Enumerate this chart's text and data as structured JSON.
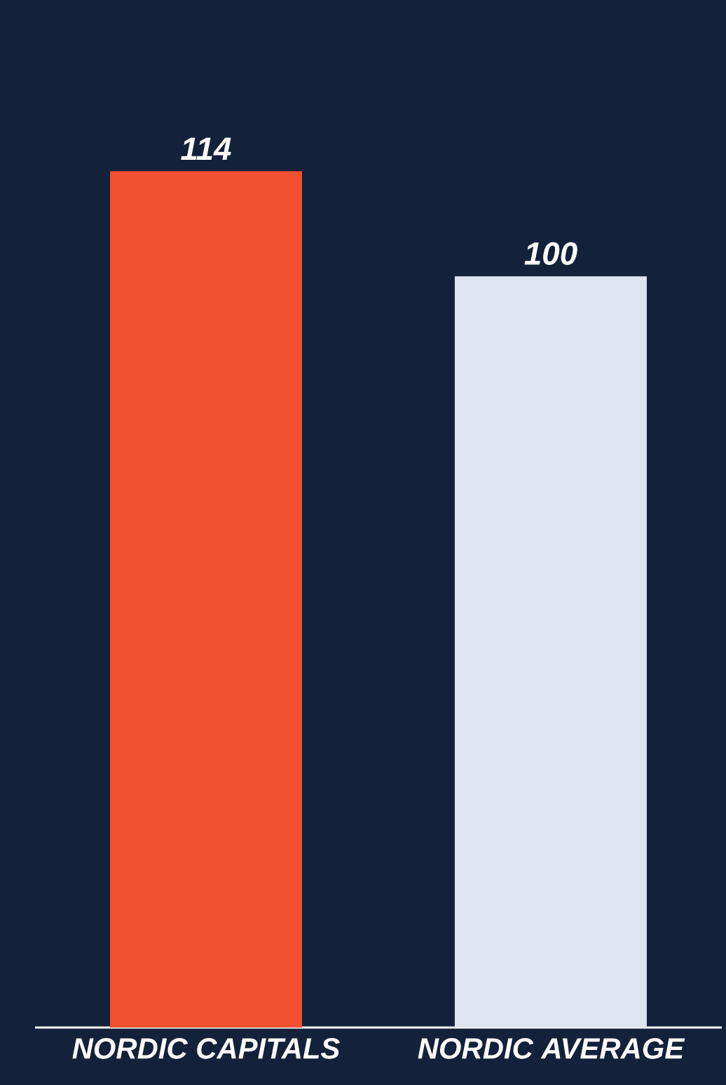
{
  "chart_data": {
    "type": "bar",
    "categories": [
      "NORDIC CAPITALS",
      "NORDIC AVERAGE"
    ],
    "values": [
      114,
      100
    ],
    "colors": [
      "#f0502f",
      "#dfe5f0"
    ],
    "data_labels": true,
    "tick_labels": "x"
  }
}
